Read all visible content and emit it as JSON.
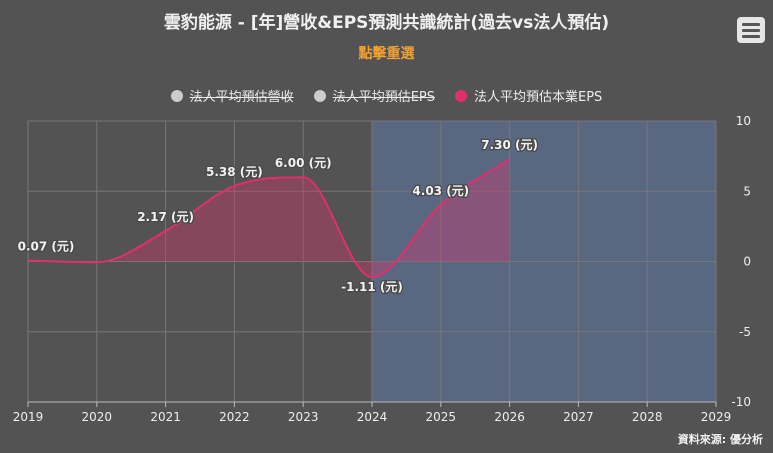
{
  "title": "雲豹能源 - [年]營收&EPS預測共識統計(過去vs法人預估)",
  "subtitle": "點擊重選",
  "legend": [
    {
      "label": "法人平均預估營收",
      "color": "#cccccc",
      "enabled": false
    },
    {
      "label": "法人平均預估EPS",
      "color": "#cccccc",
      "enabled": false
    },
    {
      "label": "法人平均預估本業EPS",
      "color": "#e0306a",
      "enabled": true
    }
  ],
  "credits": "資料來源: 優分析",
  "chart_data": {
    "type": "area",
    "x": [
      2019,
      2020,
      2021,
      2022,
      2023,
      2024,
      2025,
      2026
    ],
    "xlim": [
      2019,
      2029
    ],
    "xticks": [
      "2019",
      "2020",
      "2021",
      "2022",
      "2023",
      "2024",
      "2025",
      "2026",
      "2027",
      "2028",
      "2029"
    ],
    "yticks": [
      "10",
      "5",
      "0",
      "-5",
      "-10"
    ],
    "ylim": [
      -10,
      10
    ],
    "series": [
      {
        "name": "法人平均預估本業EPS",
        "color": "#e0306a",
        "values": [
          0.07,
          null,
          2.17,
          5.38,
          6.0,
          -1.11,
          4.03,
          7.3
        ],
        "curve_values": [
          0.07,
          -0.05,
          2.17,
          5.38,
          6.0,
          -1.11,
          4.03,
          7.3
        ],
        "labels": [
          "0.07 (元)",
          "",
          "2.17 (元)",
          "5.38 (元)",
          "6.00 (元)",
          "-1.11 (元)",
          "4.03 (元)",
          "7.30 (元)"
        ]
      }
    ],
    "forecast_band": [
      2024,
      2029
    ],
    "grid": true
  }
}
